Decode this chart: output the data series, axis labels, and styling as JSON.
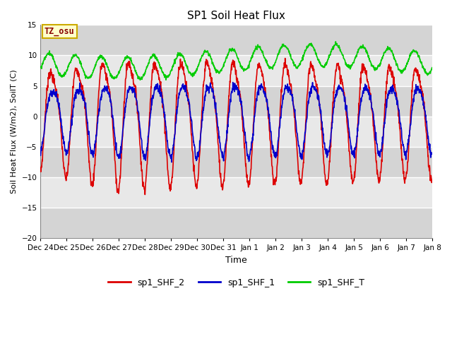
{
  "title": "SP1 Soil Heat Flux",
  "ylabel": "Soil Heat Flux (W/m2), SoilT (C)",
  "xlabel": "Time",
  "ylim": [
    -20,
    15
  ],
  "yticks": [
    -20,
    -15,
    -10,
    -5,
    0,
    5,
    10,
    15
  ],
  "background_color": "#ffffff",
  "plot_bg_color": "#e8e8e8",
  "grid_color": "#ffffff",
  "line_colors": {
    "SHF2": "#dd0000",
    "SHF1": "#0000cc",
    "SHFT": "#00cc00"
  },
  "line_widths": {
    "SHF2": 1.2,
    "SHF1": 1.2,
    "SHFT": 1.2
  },
  "legend_labels": [
    "sp1_SHF_2",
    "sp1_SHF_1",
    "sp1_SHF_T"
  ],
  "annotation_text": "TZ_osu",
  "annotation_color": "#880000",
  "annotation_bg": "#ffffcc",
  "annotation_border": "#ccaa00",
  "x_tick_labels": [
    "Dec 24",
    "Dec 25",
    "Dec 26",
    "Dec 27",
    "Dec 28",
    "Dec 29",
    "Dec 30",
    "Dec 31",
    "Jan 1",
    "Jan 2",
    "Jan 3",
    "Jan 4",
    "Jan 5",
    "Jan 6",
    "Jan 7",
    "Jan 8"
  ],
  "num_days": 15,
  "samples_per_day": 96,
  "hband_colors": [
    "#d4d4d4",
    "#e8e8e8"
  ],
  "hband_yticks": [
    -20,
    -15,
    -10,
    -5,
    0,
    5,
    10,
    15
  ]
}
